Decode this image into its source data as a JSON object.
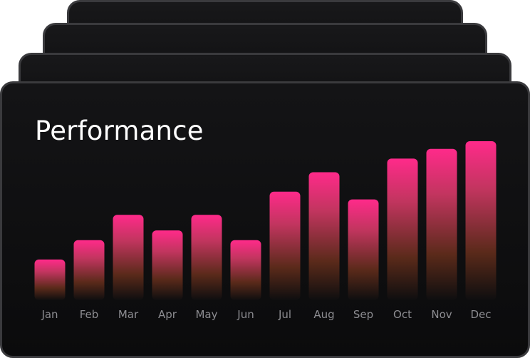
{
  "chart_data": {
    "type": "bar",
    "title": "Performance",
    "categories": [
      "Jan",
      "Feb",
      "Mar",
      "Apr",
      "May",
      "Jun",
      "Jul",
      "Aug",
      "Sep",
      "Oct",
      "Nov",
      "Dec"
    ],
    "values": [
      21,
      31,
      44,
      36,
      44,
      31,
      56,
      66,
      52,
      73,
      78,
      82
    ],
    "ylim": [
      0,
      100
    ],
    "xlabel": "",
    "ylabel": "",
    "grid": false,
    "bar_gradient": [
      "#ff2a8a",
      "#c2355f",
      "#5a2a1a",
      "#0e0e0f"
    ]
  }
}
